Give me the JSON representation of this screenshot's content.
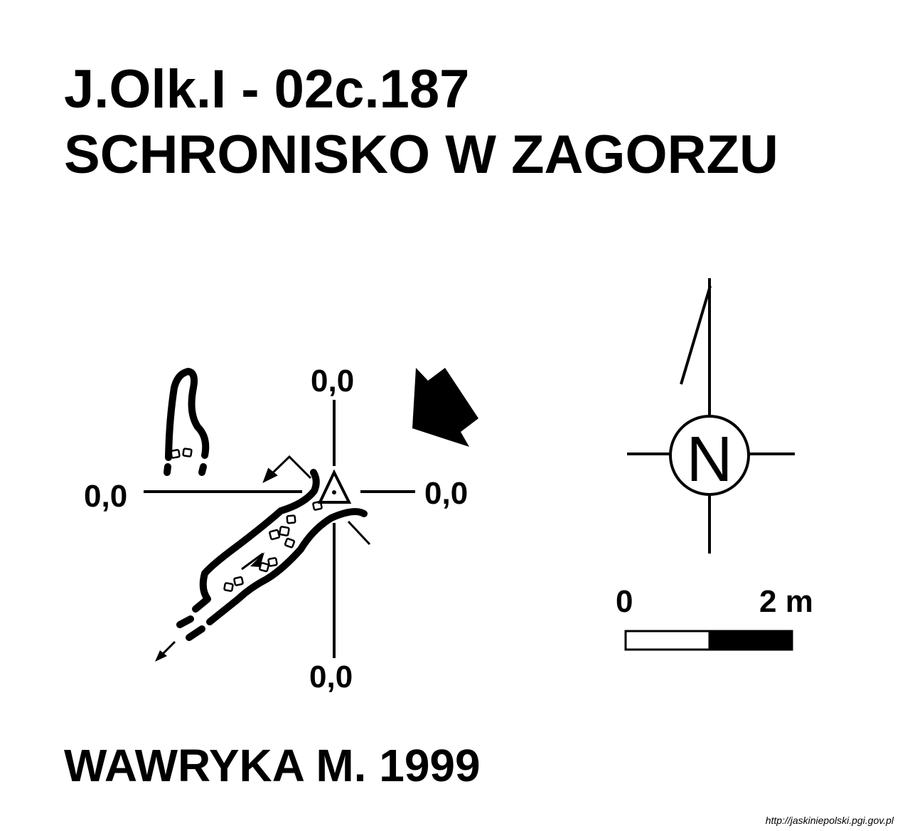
{
  "header": {
    "cave_id": "J.Olk.I - 02c.187",
    "cave_name": "SCHRONISKO W ZAGORZU"
  },
  "plan": {
    "coordinates": {
      "top": "0,0",
      "left": "0,0",
      "right": "0,0",
      "bottom": "0,0"
    }
  },
  "north_arrow": {
    "label": "N"
  },
  "scale_bar": {
    "start_label": "0",
    "end_label": "2 m"
  },
  "footer": {
    "author": "WAWRYKA M. 1999",
    "source_url": "http://jaskiniepolski.pgi.gov.pl"
  }
}
